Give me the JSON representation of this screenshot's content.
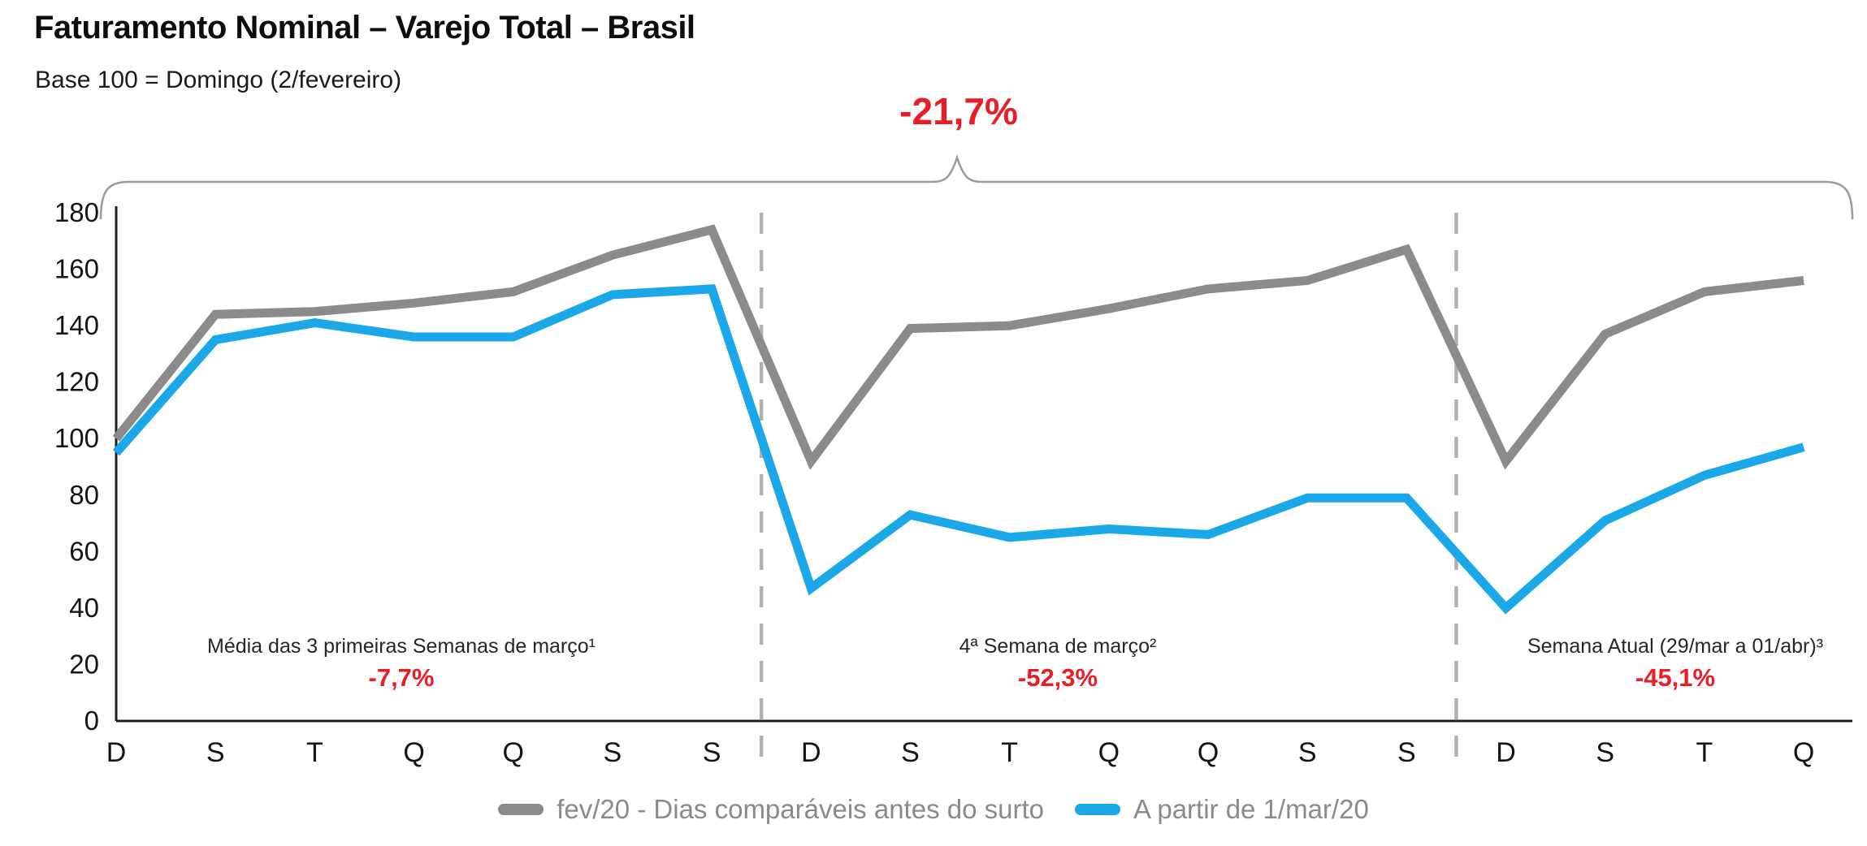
{
  "header": {
    "title": "Faturamento Nominal – Varejo Total – Brasil",
    "subtitle": "Base 100 = Domingo (2/fevereiro)"
  },
  "highlight": {
    "value": "-21,7%"
  },
  "colors": {
    "negative_red": "#EC1C24",
    "series_gray": "#8B8B8B",
    "series_blue": "#1BA8E8",
    "separator_gray": "#B0B0B0"
  },
  "chart_data": {
    "type": "line",
    "title": "Faturamento Nominal – Varejo Total – Brasil",
    "subtitle": "Base 100 = Domingo (2/fevereiro)",
    "categories": [
      "D",
      "S",
      "T",
      "Q",
      "Q",
      "S",
      "S",
      "D",
      "S",
      "T",
      "Q",
      "Q",
      "S",
      "S",
      "D",
      "S",
      "T",
      "Q"
    ],
    "series": [
      {
        "name": "fev/20 - Dias comparáveis antes do surto",
        "color": "#8B8B8B",
        "values": [
          100,
          144,
          145,
          148,
          152,
          165,
          174,
          92,
          139,
          140,
          146,
          153,
          156,
          167,
          92,
          137,
          152,
          156
        ]
      },
      {
        "name": "A partir de 1/mar/20",
        "color": "#1BA8E8",
        "values": [
          95,
          135,
          141,
          136,
          136,
          151,
          153,
          47,
          73,
          65,
          68,
          66,
          79,
          79,
          40,
          71,
          87,
          97
        ]
      }
    ],
    "xlabel": "",
    "ylabel": "",
    "ylim": [
      0,
      180
    ],
    "ytick_step": 20,
    "grid": false,
    "legend_position": "bottom",
    "separators_after_index": [
      6,
      13
    ]
  },
  "annotations": {
    "overall": {
      "value": "-21,7%"
    },
    "sections": [
      {
        "label": "Média das 3 primeiras Semanas de março¹",
        "value": "-7,7%"
      },
      {
        "label": "4ª Semana de março²",
        "value": "-52,3%"
      },
      {
        "label": "Semana Atual (29/mar a 01/abr)³",
        "value": "-45,1%"
      }
    ]
  }
}
